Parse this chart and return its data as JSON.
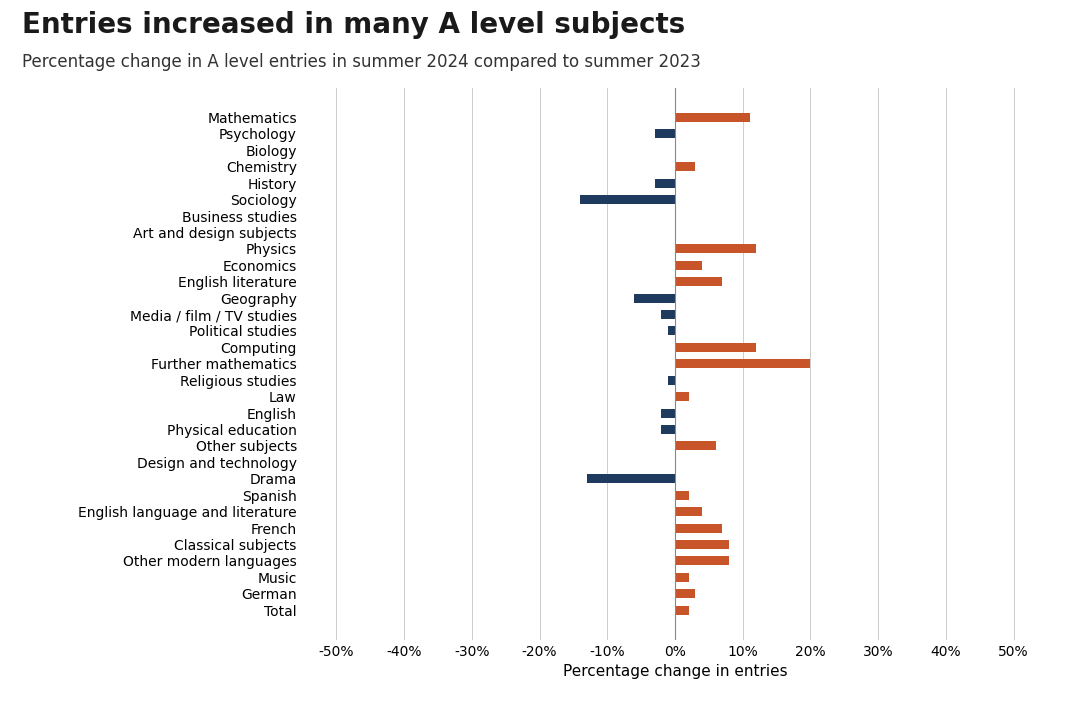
{
  "title": "Entries increased in many A level subjects",
  "subtitle": "Percentage change in A level entries in summer 2024 compared to summer 2023",
  "xlabel": "Percentage change in entries",
  "categories": [
    "Mathematics",
    "Psychology",
    "Biology",
    "Chemistry",
    "History",
    "Sociology",
    "Business studies",
    "Art and design subjects",
    "Physics",
    "Economics",
    "English literature",
    "Geography",
    "Media / film / TV studies",
    "Political studies",
    "Computing",
    "Further mathematics",
    "Religious studies",
    "Law",
    "English",
    "Physical education",
    "Other subjects",
    "Design and technology",
    "Drama",
    "Spanish",
    "English language and literature",
    "French",
    "Classical subjects",
    "Other modern languages",
    "Music",
    "German",
    "Total"
  ],
  "values": [
    11,
    -3,
    0,
    3,
    -3,
    -14,
    0,
    0,
    12,
    4,
    7,
    -6,
    -2,
    -1,
    12,
    20,
    -1,
    2,
    -2,
    -2,
    6,
    0,
    -13,
    2,
    4,
    7,
    8,
    8,
    2,
    3,
    2
  ],
  "colors": [
    "#c8552a",
    "#1e3a5f",
    "#c8552a",
    "#c8552a",
    "#1e3a5f",
    "#1e3a5f",
    "#c8552a",
    "#c8552a",
    "#c8552a",
    "#c8552a",
    "#c8552a",
    "#1e3a5f",
    "#1e3a5f",
    "#1e3a5f",
    "#c8552a",
    "#c8552a",
    "#1e3a5f",
    "#c8552a",
    "#1e3a5f",
    "#1e3a5f",
    "#c8552a",
    "#1e3a5f",
    "#1e3a5f",
    "#c8552a",
    "#c8552a",
    "#c8552a",
    "#c8552a",
    "#c8552a",
    "#c8552a",
    "#c8552a",
    "#c8552a"
  ],
  "xlim": [
    -55,
    55
  ],
  "xticks": [
    -50,
    -40,
    -30,
    -20,
    -10,
    0,
    10,
    20,
    30,
    40,
    50
  ],
  "xtick_labels": [
    "-50%",
    "-40%",
    "-30%",
    "-20%",
    "-10%",
    "0%",
    "10%",
    "20%",
    "30%",
    "40%",
    "50%"
  ],
  "background_color": "#ffffff",
  "grid_color": "#cccccc",
  "title_fontsize": 20,
  "subtitle_fontsize": 12,
  "axis_label_fontsize": 11,
  "tick_fontsize": 10,
  "category_fontsize": 10
}
